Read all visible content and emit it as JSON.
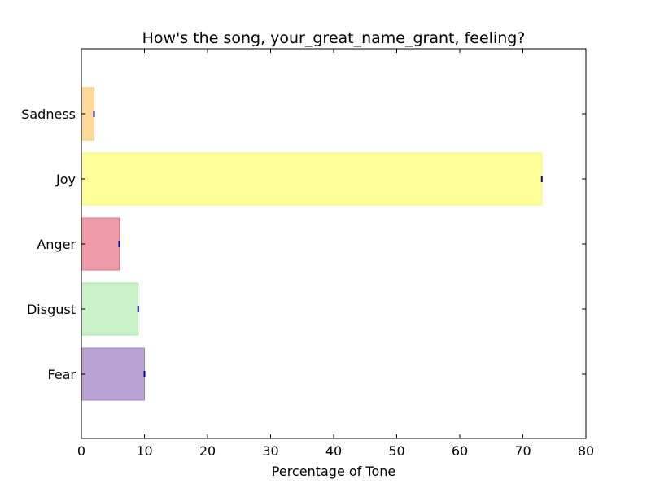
{
  "chart_data": {
    "type": "bar",
    "orientation": "horizontal",
    "title": "How's the song, your_great_name_grant, feeling?",
    "xlabel": "Percentage of Tone",
    "ylabel": "",
    "xlim": [
      0,
      80
    ],
    "xticks": [
      0,
      10,
      20,
      30,
      40,
      50,
      60,
      70,
      80
    ],
    "categories": [
      "Fear",
      "Disgust",
      "Anger",
      "Joy",
      "Sadness"
    ],
    "values": [
      10,
      9,
      6,
      73,
      2
    ],
    "bar_colors": [
      "#bba4d3",
      "#c9f2c9",
      "#ef9ba8",
      "#ffff99",
      "#ffd99a"
    ],
    "bar_edge_colors": [
      "#9d80c2",
      "#99e699",
      "#e57386",
      "#f0f07a",
      "#ffc266"
    ],
    "error_marker_color": "#0000cc",
    "grid": false,
    "legend": "none"
  }
}
